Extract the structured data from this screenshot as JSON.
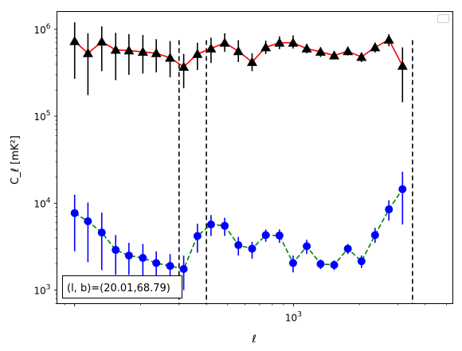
{
  "chart_data": {
    "type": "scatter",
    "title": "",
    "xlabel": "ℓ",
    "ylabel": "C_ℓ [mK²]",
    "xscale": "log",
    "yscale": "log",
    "xlim": [
      83,
      5350
    ],
    "ylim": [
      700,
      1600000
    ],
    "x_tick_labels": [
      {
        "value": 1000,
        "mantissa": "10",
        "exp": "3"
      }
    ],
    "y_tick_labels": [
      {
        "value": 1000,
        "mantissa": "10",
        "exp": "3"
      },
      {
        "value": 10000,
        "mantissa": "10",
        "exp": "4"
      },
      {
        "value": 100000,
        "mantissa": "10",
        "exp": "5"
      },
      {
        "value": 1000000,
        "mantissa": "10",
        "exp": "6"
      }
    ],
    "grid": false,
    "legend": "top-right, empty",
    "annotation": "(l, b)=(20.01,68.79)",
    "vertical_lines_x": [
      300,
      400,
      3500
    ],
    "series": [
      {
        "marker": "triangle",
        "marker_color": "#000000",
        "line_color": "#ff0000",
        "line_style": "solid",
        "points": [
          {
            "x": 100,
            "y": 730000,
            "lo": 270000,
            "hi": 1200000
          },
          {
            "x": 115,
            "y": 530000,
            "lo": 175000,
            "hi": 900000
          },
          {
            "x": 133,
            "y": 720000,
            "lo": 330000,
            "hi": 1080000
          },
          {
            "x": 154,
            "y": 580000,
            "lo": 260000,
            "hi": 910000
          },
          {
            "x": 177,
            "y": 570000,
            "lo": 300000,
            "hi": 880000
          },
          {
            "x": 205,
            "y": 550000,
            "lo": 310000,
            "hi": 860000
          },
          {
            "x": 236,
            "y": 530000,
            "lo": 320000,
            "hi": 770000
          },
          {
            "x": 273,
            "y": 470000,
            "lo": 280000,
            "hi": 730000
          },
          {
            "x": 315,
            "y": 370000,
            "lo": 210000,
            "hi": 520000
          },
          {
            "x": 364,
            "y": 520000,
            "lo": 340000,
            "hi": 700000
          },
          {
            "x": 420,
            "y": 600000,
            "lo": 410000,
            "hi": 800000
          },
          {
            "x": 485,
            "y": 700000,
            "lo": 550000,
            "hi": 900000
          },
          {
            "x": 560,
            "y": 560000,
            "lo": 420000,
            "hi": 750000
          },
          {
            "x": 647,
            "y": 420000,
            "lo": 330000,
            "hi": 530000
          },
          {
            "x": 747,
            "y": 620000,
            "lo": 520000,
            "hi": 740000
          },
          {
            "x": 863,
            "y": 700000,
            "lo": 590000,
            "hi": 830000
          },
          {
            "x": 996,
            "y": 700000,
            "lo": 600000,
            "hi": 850000
          },
          {
            "x": 1150,
            "y": 600000,
            "lo": 530000,
            "hi": 680000
          },
          {
            "x": 1330,
            "y": 550000,
            "lo": 480000,
            "hi": 620000
          },
          {
            "x": 1535,
            "y": 500000,
            "lo": 450000,
            "hi": 560000
          },
          {
            "x": 1772,
            "y": 560000,
            "lo": 500000,
            "hi": 630000
          },
          {
            "x": 2046,
            "y": 480000,
            "lo": 420000,
            "hi": 540000
          },
          {
            "x": 2360,
            "y": 620000,
            "lo": 540000,
            "hi": 700000
          },
          {
            "x": 2730,
            "y": 760000,
            "lo": 640000,
            "hi": 880000
          },
          {
            "x": 3150,
            "y": 380000,
            "lo": 145000,
            "hi": 620000
          }
        ]
      },
      {
        "marker": "circle",
        "marker_color": "#0000ff",
        "line_color": "#008000",
        "line_style": "dashed",
        "points": [
          {
            "x": 100,
            "y": 7700,
            "lo": 2800,
            "hi": 12500
          },
          {
            "x": 115,
            "y": 6200,
            "lo": 2100,
            "hi": 10200
          },
          {
            "x": 133,
            "y": 4600,
            "lo": 1700,
            "hi": 7800
          },
          {
            "x": 154,
            "y": 2900,
            "lo": 1500,
            "hi": 4300
          },
          {
            "x": 177,
            "y": 2500,
            "lo": 1500,
            "hi": 3500
          },
          {
            "x": 205,
            "y": 2350,
            "lo": 1300,
            "hi": 3400
          },
          {
            "x": 236,
            "y": 2050,
            "lo": 1300,
            "hi": 2800
          },
          {
            "x": 273,
            "y": 1900,
            "lo": 1300,
            "hi": 2600
          },
          {
            "x": 315,
            "y": 1750,
            "lo": 1000,
            "hi": 2500
          },
          {
            "x": 364,
            "y": 4200,
            "lo": 2700,
            "hi": 5800
          },
          {
            "x": 420,
            "y": 5700,
            "lo": 4200,
            "hi": 7300
          },
          {
            "x": 485,
            "y": 5500,
            "lo": 4200,
            "hi": 6800
          },
          {
            "x": 560,
            "y": 3300,
            "lo": 2500,
            "hi": 4100
          },
          {
            "x": 647,
            "y": 3000,
            "lo": 2300,
            "hi": 3600
          },
          {
            "x": 747,
            "y": 4300,
            "lo": 3600,
            "hi": 5000
          },
          {
            "x": 863,
            "y": 4250,
            "lo": 3500,
            "hi": 5000
          },
          {
            "x": 996,
            "y": 2050,
            "lo": 1600,
            "hi": 2500
          },
          {
            "x": 1150,
            "y": 3200,
            "lo": 2600,
            "hi": 3800
          },
          {
            "x": 1330,
            "y": 2000,
            "lo": 1750,
            "hi": 2250
          },
          {
            "x": 1535,
            "y": 1950,
            "lo": 1700,
            "hi": 2200
          },
          {
            "x": 1772,
            "y": 3000,
            "lo": 2600,
            "hi": 3400
          },
          {
            "x": 2046,
            "y": 2150,
            "lo": 1800,
            "hi": 2500
          },
          {
            "x": 2360,
            "y": 4300,
            "lo": 3500,
            "hi": 5200
          },
          {
            "x": 2730,
            "y": 8500,
            "lo": 6300,
            "hi": 10800
          },
          {
            "x": 3150,
            "y": 14500,
            "lo": 5700,
            "hi": 23000
          }
        ]
      }
    ]
  }
}
